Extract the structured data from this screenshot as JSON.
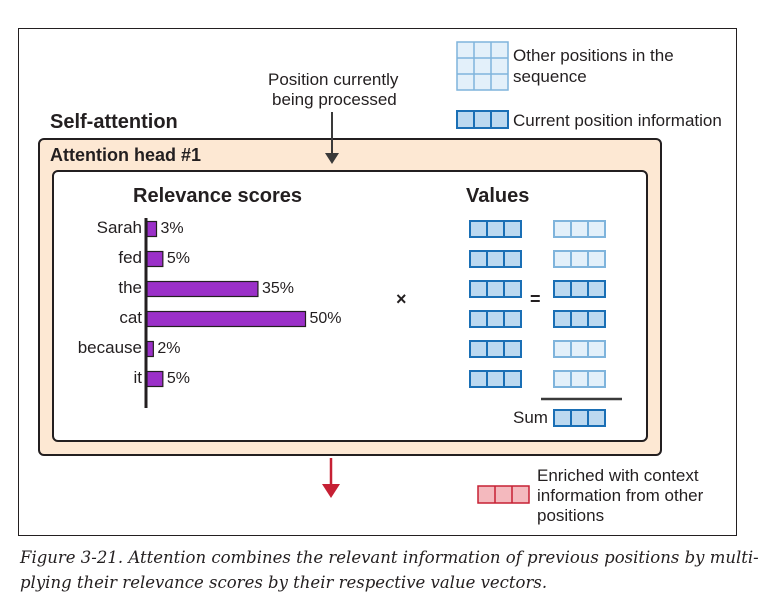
{
  "diagram": {
    "self_attention_label": "Self-attention",
    "head_label": "Attention head #1",
    "position_note_line1": "Position currently",
    "position_note_line2": "being processed",
    "legend": {
      "other_line1": "Other positions in the",
      "other_line2": "sequence",
      "current": "Current position information",
      "enriched_line1": "Enriched with context",
      "enriched_line2": "information from other",
      "enriched_line3": "positions"
    },
    "relevance_title": "Relevance scores",
    "values_title": "Values",
    "times_symbol": "×",
    "equals_symbol": "=",
    "sum_label": "Sum",
    "colors": {
      "bar": "#9b30c8",
      "value_blue": "#1a6fb5",
      "value_fill": "#bcd9f0",
      "faded_blue": "#7fb4dc",
      "faded_fill": "#e3f0fa",
      "head_bg": "#fde8d3",
      "red_arrow": "#c62034",
      "red_fill": "#f4b9be"
    }
  },
  "chart_data": {
    "type": "bar",
    "orientation": "horizontal",
    "title": "Relevance scores",
    "categories": [
      "Sarah",
      "fed",
      "the",
      "cat",
      "because",
      "it"
    ],
    "values": [
      3,
      5,
      35,
      50,
      2,
      5
    ],
    "value_labels": [
      "3%",
      "5%",
      "35%",
      "50%",
      "2%",
      "5%"
    ],
    "unit": "%",
    "xlim": [
      0,
      50
    ]
  },
  "caption": {
    "text": "Figure 3-21. Attention combines the relevant information of previous positions by multi-plying their relevance scores by their respective value vectors."
  }
}
